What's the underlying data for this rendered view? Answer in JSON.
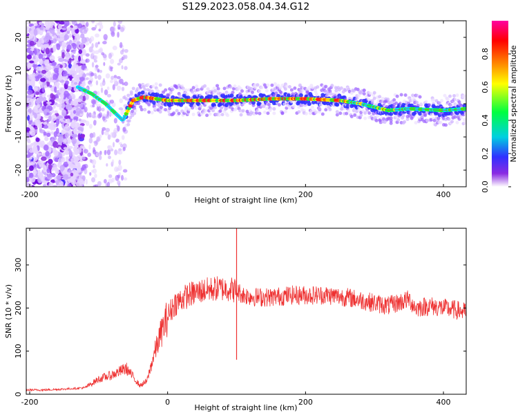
{
  "chart_data": [
    {
      "type": "heatmap",
      "title": "S129.2023.058.04.34.G12",
      "xlabel": "Height of straight line (km)",
      "ylabel": "Frequency (Hz)",
      "xlim": [
        -205,
        433
      ],
      "ylim": [
        -25,
        25
      ],
      "x_ticks": [
        -200,
        0,
        200,
        400
      ],
      "y_ticks": [
        -20,
        -10,
        0,
        10,
        20
      ],
      "colorbar": {
        "label": "Normalized spectral amplitude",
        "range": [
          0,
          1
        ],
        "ticks": [
          0.0,
          0.2,
          0.4,
          0.6,
          0.8
        ],
        "colors": [
          "#ffffff",
          "#8a2be2",
          "#3030ff",
          "#00d0e0",
          "#00ff40",
          "#ffff00",
          "#ff8000",
          "#ff0000",
          "#ff00a0"
        ]
      },
      "ridge": {
        "x": [
          -130,
          -110,
          -90,
          -75,
          -65,
          -50,
          -35,
          0,
          50,
          100,
          150,
          200,
          250,
          280,
          300,
          320,
          350,
          400,
          433
        ],
        "y": [
          5,
          3,
          0,
          -3,
          -5,
          1,
          2,
          1,
          1,
          1,
          1.5,
          1.5,
          1,
          0,
          -1,
          -2,
          -1.5,
          -2,
          -1.5
        ]
      }
    },
    {
      "type": "line",
      "title": "",
      "xlabel": "Height of straight line (km)",
      "ylabel": "SNR (10 * v/v)",
      "xlim": [
        -205,
        433
      ],
      "ylim": [
        0,
        385
      ],
      "x_ticks": [
        -200,
        0,
        200,
        400
      ],
      "y_ticks": [
        0,
        100,
        200,
        300
      ],
      "series": [
        {
          "color": "#ee3030",
          "x": [
            -205,
            -180,
            -150,
            -120,
            -100,
            -80,
            -60,
            -50,
            -40,
            -30,
            -20,
            -10,
            0,
            10,
            20,
            30,
            50,
            70,
            90,
            100,
            110,
            130,
            150,
            180,
            200,
            230,
            260,
            290,
            320,
            350,
            360,
            380,
            400,
            420,
            433
          ],
          "y": [
            10,
            10,
            12,
            15,
            35,
            45,
            60,
            40,
            20,
            30,
            90,
            140,
            180,
            210,
            220,
            230,
            240,
            245,
            245,
            240,
            230,
            225,
            225,
            230,
            230,
            230,
            225,
            215,
            205,
            220,
            200,
            205,
            200,
            195,
            190
          ]
        }
      ],
      "spike": {
        "x": 100,
        "y_max": 385,
        "y_min": 80
      }
    }
  ]
}
